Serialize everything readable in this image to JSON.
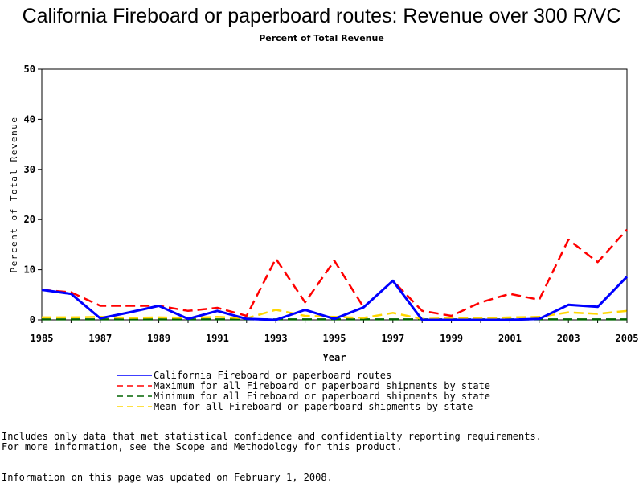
{
  "header": {
    "title": "California Fireboard or paperboard routes: Revenue over 300 R/VC",
    "subtitle": "Percent of Total Revenue"
  },
  "chart_data": {
    "type": "line",
    "title": "California Fireboard or paperboard routes: Revenue over 300 R/VC",
    "subtitle": "Percent of Total Revenue",
    "xlabel": "Year",
    "ylabel": "Percent of Total Revenue",
    "xlim": [
      1985,
      2005
    ],
    "ylim": [
      0,
      50
    ],
    "x_ticks": [
      "1985",
      "1987",
      "1989",
      "1991",
      "1993",
      "1995",
      "1997",
      "1999",
      "2001",
      "2003",
      "2005"
    ],
    "y_ticks": [
      "0",
      "10",
      "20",
      "30",
      "40",
      "50"
    ],
    "grid": false,
    "legend_position": "bottom",
    "x": [
      1985,
      1986,
      1987,
      1988,
      1989,
      1990,
      1991,
      1992,
      1993,
      1994,
      1995,
      1996,
      1997,
      1998,
      1999,
      2000,
      2001,
      2002,
      2003,
      2004,
      2005
    ],
    "series": [
      {
        "name": "California Fireboard or paperboard routes",
        "color": "#0000ff",
        "style": "solid",
        "values": [
          6.0,
          5.2,
          0.3,
          1.5,
          2.8,
          0.2,
          1.8,
          0.2,
          0.0,
          2.0,
          0.2,
          2.5,
          7.8,
          0.0,
          0.0,
          0.0,
          0.0,
          0.2,
          3.0,
          2.6,
          8.6
        ]
      },
      {
        "name": "Maximum for all Fireboard or paperboard shipments by state",
        "color": "#ff0000",
        "style": "dashed",
        "values": [
          6.0,
          5.5,
          2.8,
          2.8,
          2.8,
          1.8,
          2.4,
          0.8,
          12.2,
          3.5,
          11.8,
          2.5,
          7.8,
          1.8,
          0.8,
          3.5,
          5.2,
          4.0,
          16.0,
          11.5,
          18.0
        ]
      },
      {
        "name": "Minimum for all Fireboard or paperboard shipments by state",
        "color": "#006400",
        "style": "dashed",
        "values": [
          0.1,
          0.1,
          0.1,
          0.1,
          0.1,
          0.1,
          0.1,
          0.1,
          0.1,
          0.1,
          0.1,
          0.1,
          0.1,
          0.1,
          0.1,
          0.1,
          0.1,
          0.1,
          0.1,
          0.1,
          0.1
        ]
      },
      {
        "name": "Mean for all Fireboard or paperboard shipments by state",
        "color": "#ffd700",
        "style": "dashed",
        "values": [
          0.5,
          0.5,
          0.6,
          0.4,
          0.5,
          0.4,
          0.6,
          0.3,
          2.0,
          0.8,
          0.6,
          0.4,
          1.4,
          0.2,
          0.3,
          0.3,
          0.5,
          0.6,
          1.5,
          1.2,
          1.8
        ]
      }
    ]
  },
  "notes": {
    "line1": "Includes only data that met statistical confidence and confidentialty reporting requirements.",
    "line2": "For more information, see the Scope and Methodology for this product.",
    "updated": "Information on this page was updated on February 1, 2008."
  }
}
